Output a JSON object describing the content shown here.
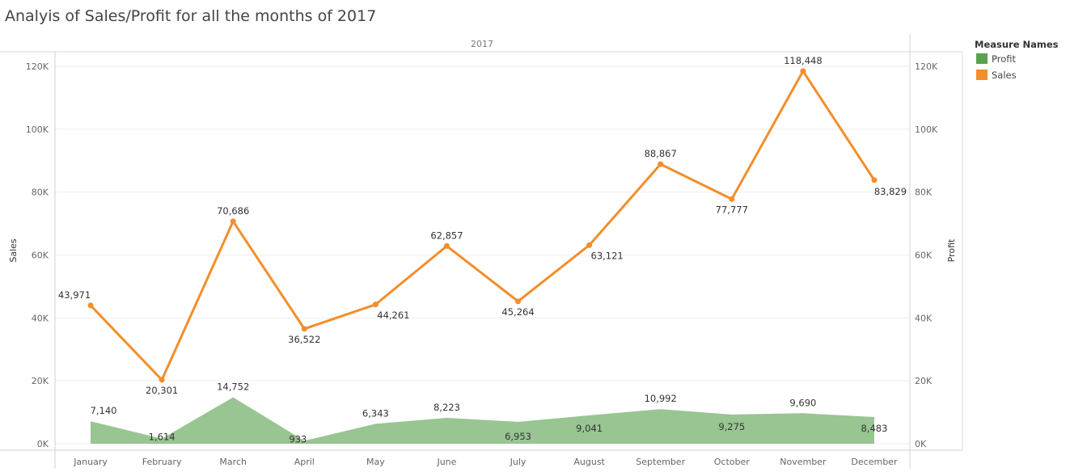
{
  "chart_data": {
    "type": "line",
    "title": "Analyis of Sales/Profit for all the months of 2017",
    "column_header": "2017",
    "categories": [
      "January",
      "February",
      "March",
      "April",
      "May",
      "June",
      "July",
      "August",
      "September",
      "October",
      "November",
      "December"
    ],
    "series": [
      {
        "name": "Sales",
        "mark": "line",
        "color": "#F28E2B",
        "values": [
          43971,
          20301,
          70686,
          36522,
          44261,
          62857,
          45264,
          63121,
          88867,
          77777,
          118448,
          83829
        ],
        "labels": [
          "43,971",
          "20,301",
          "70,686",
          "36,522",
          "44,261",
          "62,857",
          "45,264",
          "63,121",
          "88,867",
          "77,777",
          "118,448",
          "83,829"
        ]
      },
      {
        "name": "Profit",
        "mark": "area",
        "color": "#59A14F",
        "values": [
          7140,
          1614,
          14752,
          933,
          6343,
          8223,
          6953,
          9041,
          10992,
          9275,
          9690,
          8483
        ],
        "labels": [
          "7,140",
          "1,614",
          "14,752",
          "933",
          "6,343",
          "8,223",
          "6,953",
          "9,041",
          "10,992",
          "9,275",
          "9,690",
          "8,483"
        ]
      }
    ],
    "left_axis": {
      "title": "Sales",
      "ylim": [
        0,
        120000
      ],
      "ticks": [
        0,
        20000,
        40000,
        60000,
        80000,
        100000,
        120000
      ],
      "tick_labels": [
        "0K",
        "20K",
        "40K",
        "60K",
        "80K",
        "100K",
        "120K"
      ]
    },
    "right_axis": {
      "title": "Profit",
      "ylim": [
        0,
        120000
      ],
      "ticks": [
        0,
        20000,
        40000,
        60000,
        80000,
        100000,
        120000
      ],
      "tick_labels": [
        "0K",
        "20K",
        "40K",
        "60K",
        "80K",
        "100K",
        "120K"
      ]
    },
    "grid": true,
    "legend": {
      "title": "Measure Names",
      "position": "top-right",
      "items": [
        {
          "name": "Profit",
          "color": "#59A14F"
        },
        {
          "name": "Sales",
          "color": "#F28E2B"
        }
      ]
    }
  }
}
